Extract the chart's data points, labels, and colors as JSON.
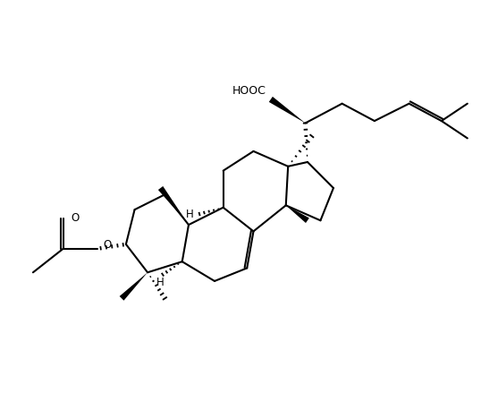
{
  "bg_color": "#ffffff",
  "line_color": "#000000",
  "line_width": 1.5,
  "figsize": [
    5.38,
    4.49
  ],
  "dpi": 100,
  "xlim": [
    -1.6,
    9.5
  ],
  "ylim": [
    1.0,
    8.5
  ]
}
